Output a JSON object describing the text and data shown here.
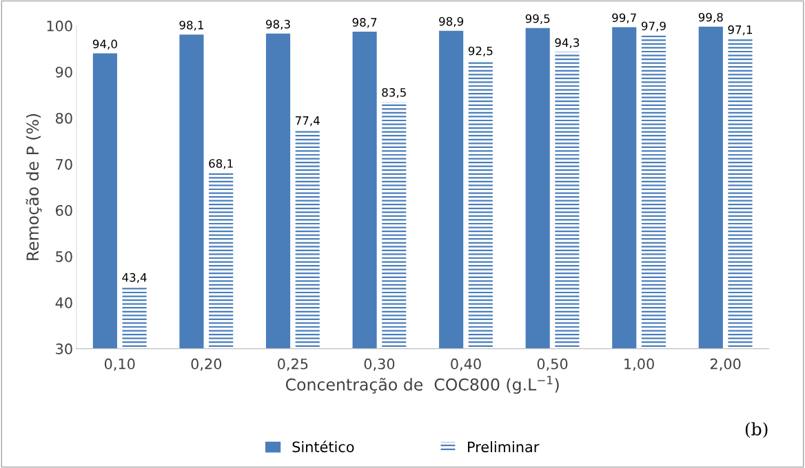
{
  "chart_data": {
    "type": "bar",
    "categories": [
      "0,10",
      "0,20",
      "0,25",
      "0,30",
      "0,40",
      "0,50",
      "1,00",
      "2,00"
    ],
    "series": [
      {
        "name": "Sintético",
        "color": "#4a7ebb",
        "values": [
          94.0,
          98.1,
          98.3,
          98.7,
          98.9,
          99.5,
          99.7,
          99.8
        ],
        "value_labels": [
          "94,0",
          "98,1",
          "98,3",
          "98,7",
          "98,9",
          "99,5",
          "99,7",
          "99,8"
        ]
      },
      {
        "name": "Preliminar",
        "color": "#4a7ebb",
        "values": [
          43.4,
          68.1,
          77.4,
          83.5,
          92.5,
          94.3,
          97.9,
          97.1
        ],
        "value_labels": [
          "43,4",
          "68,1",
          "77,4",
          "83,5",
          "92,5",
          "94,3",
          "97,9",
          "97,1"
        ]
      }
    ],
    "xlabel": "Concentração de  COC800 (g.L$^{−1}$)",
    "ylabel": "Remoção de P (%)",
    "ylim": [
      30,
      100
    ],
    "yticks": [
      30,
      40,
      50,
      60,
      70,
      80,
      90,
      100
    ],
    "grid": false,
    "legend": "bottom",
    "annotations": [
      "(b)"
    ]
  }
}
